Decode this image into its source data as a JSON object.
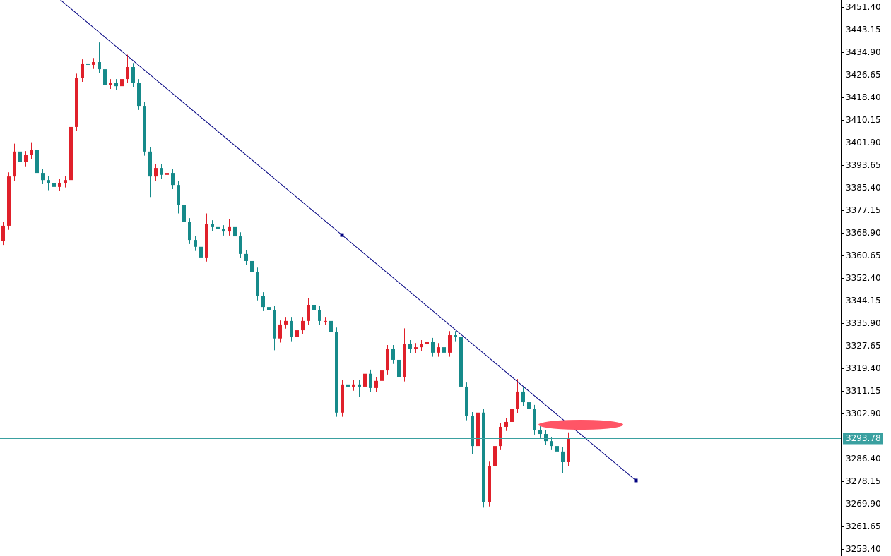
{
  "chart_data": {
    "type": "candlestick",
    "up_color": "#e0202a",
    "down_color": "#168a8a",
    "line_color": "#3aa0a0",
    "trend_color": "#000080",
    "ylim": [
      3250.8,
      3454.0
    ],
    "yticks": [
      {
        "value": 3253.4,
        "label": "3253.40"
      },
      {
        "value": 3261.65,
        "label": "3261.65"
      },
      {
        "value": 3269.9,
        "label": "3269.90"
      },
      {
        "value": 3278.15,
        "label": "3278.15"
      },
      {
        "value": 3286.4,
        "label": "3286.40"
      },
      {
        "value": 3302.9,
        "label": "3302.90"
      },
      {
        "value": 3311.15,
        "label": "3311.15"
      },
      {
        "value": 3319.4,
        "label": "3319.40"
      },
      {
        "value": 3327.65,
        "label": "3327.65"
      },
      {
        "value": 3335.9,
        "label": "3335.90"
      },
      {
        "value": 3344.15,
        "label": "3344.15"
      },
      {
        "value": 3352.4,
        "label": "3352.40"
      },
      {
        "value": 3360.65,
        "label": "3360.65"
      },
      {
        "value": 3368.9,
        "label": "3368.90"
      },
      {
        "value": 3377.15,
        "label": "3377.15"
      },
      {
        "value": 3385.4,
        "label": "3385.40"
      },
      {
        "value": 3393.65,
        "label": "3393.65"
      },
      {
        "value": 3401.9,
        "label": "3401.90"
      },
      {
        "value": 3410.15,
        "label": "3410.15"
      },
      {
        "value": 3418.4,
        "label": "3418.40"
      },
      {
        "value": 3426.65,
        "label": "3426.65"
      },
      {
        "value": 3434.9,
        "label": "3434.90"
      },
      {
        "value": 3443.15,
        "label": "3443.15"
      },
      {
        "value": 3451.4,
        "label": "3451.40"
      }
    ],
    "current_price": 3293.78,
    "trendline": {
      "x": [
        60,
        112
      ],
      "values": [
        3368.1,
        3278.4
      ]
    },
    "open": [
      3366.0,
      3371.5,
      3389.5,
      3398.6,
      3394.7,
      3397.3,
      3399.3,
      3390.8,
      3388.2,
      3387.0,
      3385.7,
      3387.0,
      3388.2,
      3407.6,
      3425.6,
      3430.8,
      3430.3,
      3431.3,
      3428.7,
      3423.0,
      3423.6,
      3422.5,
      3425.1,
      3429.5,
      3423.6,
      3415.3,
      3398.6,
      3389.5,
      3392.6,
      3390.1,
      3390.8,
      3386.4,
      3379.2,
      3372.8,
      3366.3,
      3363.8,
      3359.9,
      3372.0,
      3371.0,
      3370.2,
      3369.4,
      3371.0,
      3367.6,
      3361.2,
      3358.6,
      3354.7,
      3345.7,
      3341.8,
      3340.6,
      3330.3,
      3335.4,
      3336.7,
      3330.8,
      3333.3,
      3336.7,
      3342.6,
      3340.6,
      3336.7,
      3336.7,
      3332.8,
      3303.2,
      3313.5,
      3312.7,
      3313.5,
      3312.7,
      3317.4,
      3312.2,
      3314.8,
      3318.6,
      3326.4,
      3322.5,
      3316.1,
      3328.2,
      3326.4,
      3327.1,
      3328.2,
      3329.0,
      3325.1,
      3327.1,
      3325.1,
      3331.5,
      3330.8,
      3312.7,
      3301.9,
      3291.0,
      3303.2,
      3270.4,
      3283.8,
      3291.0,
      3298.0,
      3299.8,
      3304.5,
      3310.9,
      3307.0,
      3304.5,
      3296.7,
      3295.4,
      3292.8,
      3291.0,
      3289.0,
      3285.1
    ],
    "high": [
      3373.0,
      3391.0,
      3401.5,
      3400.1,
      3398.8,
      3402.0,
      3400.8,
      3392.3,
      3389.7,
      3388.5,
      3388.5,
      3389.7,
      3409.1,
      3427.1,
      3432.3,
      3432.3,
      3432.8,
      3438.5,
      3430.2,
      3425.1,
      3425.1,
      3426.6,
      3434.0,
      3431.0,
      3425.1,
      3416.8,
      3400.1,
      3394.1,
      3394.1,
      3394.0,
      3392.3,
      3387.9,
      3380.7,
      3374.3,
      3367.8,
      3365.3,
      3376.0,
      3373.5,
      3372.5,
      3371.7,
      3374.0,
      3372.5,
      3369.1,
      3362.7,
      3360.1,
      3356.2,
      3347.2,
      3343.3,
      3342.1,
      3336.9,
      3338.2,
      3338.2,
      3334.8,
      3338.2,
      3345.0,
      3344.1,
      3342.1,
      3338.2,
      3338.2,
      3334.3,
      3315.0,
      3315.0,
      3315.0,
      3315.0,
      3318.9,
      3318.9,
      3316.3,
      3320.1,
      3327.9,
      3327.9,
      3324.0,
      3334.0,
      3329.7,
      3328.6,
      3329.7,
      3332.0,
      3330.5,
      3328.6,
      3328.6,
      3333.0,
      3333.0,
      3332.3,
      3314.2,
      3303.4,
      3305.0,
      3304.7,
      3285.3,
      3292.5,
      3299.5,
      3301.3,
      3306.0,
      3315.5,
      3312.4,
      3312.0,
      3306.0,
      3298.2,
      3296.9,
      3294.3,
      3292.5,
      3290.5,
      3296.0
    ],
    "low": [
      3364.5,
      3370.0,
      3388.0,
      3393.2,
      3393.2,
      3395.8,
      3389.3,
      3386.7,
      3384.5,
      3384.2,
      3384.2,
      3385.5,
      3386.7,
      3406.1,
      3424.1,
      3428.8,
      3428.8,
      3427.2,
      3421.5,
      3421.5,
      3421.0,
      3421.0,
      3423.6,
      3422.1,
      3413.8,
      3397.1,
      3382.0,
      3388.0,
      3388.6,
      3388.6,
      3384.9,
      3376.0,
      3371.3,
      3364.8,
      3362.3,
      3352.0,
      3358.4,
      3369.5,
      3368.7,
      3367.9,
      3367.9,
      3366.1,
      3359.7,
      3357.1,
      3353.2,
      3344.2,
      3340.3,
      3339.1,
      3326.0,
      3328.8,
      3333.9,
      3329.3,
      3329.3,
      3331.8,
      3335.2,
      3339.1,
      3335.2,
      3335.2,
      3331.3,
      3301.7,
      3301.7,
      3311.2,
      3311.2,
      3309.0,
      3311.2,
      3310.7,
      3310.7,
      3313.3,
      3317.1,
      3321.0,
      3313.0,
      3314.6,
      3324.9,
      3324.9,
      3325.6,
      3326.7,
      3323.6,
      3323.6,
      3323.6,
      3323.6,
      3329.3,
      3311.2,
      3300.4,
      3288.0,
      3289.5,
      3268.5,
      3268.9,
      3282.3,
      3289.5,
      3296.5,
      3298.3,
      3303.0,
      3305.5,
      3303.0,
      3295.2,
      3293.9,
      3291.3,
      3289.5,
      3287.5,
      3281.0,
      3283.6
    ],
    "close": [
      3371.5,
      3389.5,
      3398.6,
      3394.7,
      3397.3,
      3399.3,
      3390.8,
      3388.2,
      3387.0,
      3385.7,
      3387.0,
      3388.2,
      3407.6,
      3425.6,
      3430.8,
      3430.3,
      3431.3,
      3428.7,
      3423.0,
      3423.6,
      3422.5,
      3425.1,
      3429.5,
      3423.6,
      3415.3,
      3398.6,
      3389.5,
      3392.6,
      3390.1,
      3390.8,
      3386.4,
      3379.2,
      3372.8,
      3366.3,
      3363.8,
      3359.9,
      3372.0,
      3371.0,
      3370.2,
      3369.4,
      3371.0,
      3367.6,
      3361.2,
      3358.6,
      3354.7,
      3345.7,
      3341.8,
      3340.6,
      3330.3,
      3335.4,
      3336.7,
      3330.8,
      3333.3,
      3336.7,
      3342.6,
      3340.6,
      3336.7,
      3336.7,
      3332.8,
      3303.2,
      3313.5,
      3312.7,
      3313.5,
      3312.7,
      3317.4,
      3312.2,
      3314.8,
      3318.6,
      3326.4,
      3322.5,
      3316.1,
      3328.2,
      3326.4,
      3327.1,
      3328.2,
      3329.0,
      3325.1,
      3327.1,
      3325.1,
      3331.5,
      3330.8,
      3312.7,
      3301.9,
      3291.0,
      3303.2,
      3270.4,
      3283.8,
      3291.0,
      3298.0,
      3299.8,
      3304.5,
      3310.9,
      3307.0,
      3304.5,
      3296.7,
      3295.4,
      3292.8,
      3291.0,
      3289.0,
      3285.1,
      3293.78
    ]
  }
}
